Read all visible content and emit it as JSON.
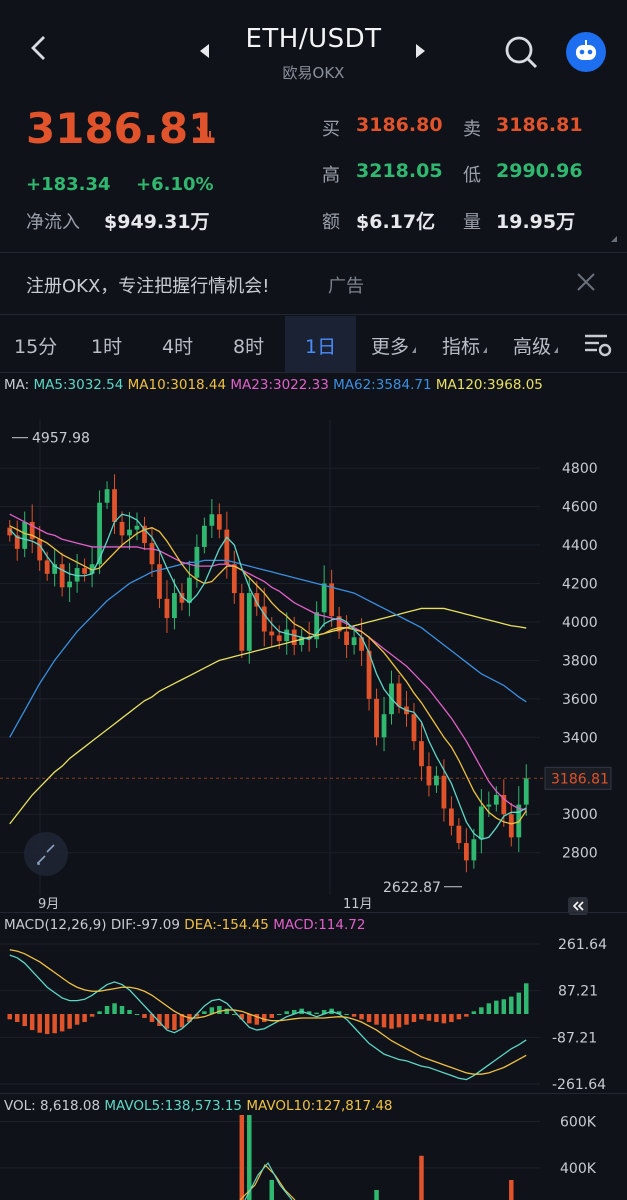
{
  "header": {
    "pair": "ETH/USDT",
    "exchange": "欧易OKX"
  },
  "ticker": {
    "price": "3186.81",
    "change": "+183.34",
    "change_pct": "+6.10%",
    "inflow_label": "净流入",
    "inflow_value": "$949.31万",
    "buy_label": "买",
    "buy_value": "3186.80",
    "sell_label": "卖",
    "sell_value": "3186.81",
    "high_label": "高",
    "high_value": "3218.05",
    "low_label": "低",
    "low_value": "2990.96",
    "amount_label": "额",
    "amount_value": "$6.17亿",
    "volume_label": "量",
    "volume_value": "19.95万"
  },
  "ad": {
    "text": "注册OKX，专注把握行情机会!",
    "tag": "广告"
  },
  "tabs": [
    {
      "label": "15分"
    },
    {
      "label": "1时"
    },
    {
      "label": "4时"
    },
    {
      "label": "8时"
    },
    {
      "label": "1日",
      "active": true
    },
    {
      "label": "更多"
    },
    {
      "label": "指标"
    },
    {
      "label": "高级"
    }
  ],
  "ma_legend": {
    "ma": "MA:",
    "ma5": "MA5:3032.54",
    "ma10": "MA10:3018.44",
    "ma23": "MA23:3022.33",
    "ma62": "MA62:3584.71",
    "ma120": "MA120:3968.05"
  },
  "colors": {
    "up": "#30b870",
    "down": "#e0532b",
    "ma5": "#5ed6c6",
    "ma10": "#f0c040",
    "ma23": "#e060c8",
    "ma62": "#3b8fe0",
    "ma120": "#e8e060",
    "accent": "#4a8dff"
  },
  "chart_data": [
    {
      "type": "candlestick",
      "x_labels": [
        "9月",
        "11月"
      ],
      "y_ticks": [
        4800,
        4600,
        4400,
        4200,
        4000,
        3800,
        3600,
        3400,
        3000,
        2800
      ],
      "ylim": [
        2580,
        5050
      ],
      "current_price_label": "3186.81",
      "max_label": "4957.98",
      "min_label": "2622.87",
      "close": [
        4450,
        4380,
        4520,
        4430,
        4320,
        4250,
        4300,
        4180,
        4210,
        4280,
        4250,
        4300,
        4620,
        4690,
        4520,
        4450,
        4480,
        4500,
        4410,
        4300,
        4120,
        4020,
        4150,
        4100,
        4230,
        4390,
        4500,
        4560,
        4480,
        4300,
        4150,
        3850,
        4150,
        4080,
        3950,
        3930,
        3900,
        3960,
        3880,
        3920,
        3910,
        4050,
        4200,
        4030,
        3950,
        3880,
        3920,
        3850,
        3600,
        3400,
        3520,
        3680,
        3560,
        3520,
        3380,
        3250,
        3150,
        3200,
        3030,
        2940,
        2850,
        2760,
        2870,
        3040,
        3050,
        3100,
        3000,
        2880,
        3050,
        3186.81
      ],
      "ma5": [
        4480,
        4440,
        4430,
        4420,
        4400,
        4340,
        4290,
        4270,
        4250,
        4240,
        4240,
        4250,
        4330,
        4420,
        4520,
        4560,
        4550,
        4530,
        4480,
        4440,
        4370,
        4280,
        4200,
        4130,
        4100,
        4140,
        4200,
        4290,
        4380,
        4440,
        4400,
        4280,
        4180,
        4100,
        4040,
        3990,
        3950,
        3940,
        3930,
        3920,
        3910,
        3940,
        3990,
        4010,
        4020,
        4000,
        3960,
        3920,
        3840,
        3730,
        3650,
        3600,
        3560,
        3540,
        3530,
        3480,
        3380,
        3300,
        3230,
        3160,
        3060,
        2960,
        2900,
        2870,
        2880,
        2930,
        2990,
        3010,
        3010,
        3032.54
      ],
      "ma10": [
        4500,
        4480,
        4460,
        4450,
        4430,
        4410,
        4380,
        4350,
        4330,
        4310,
        4290,
        4270,
        4280,
        4320,
        4360,
        4400,
        4430,
        4460,
        4480,
        4490,
        4470,
        4420,
        4360,
        4300,
        4250,
        4220,
        4200,
        4210,
        4250,
        4290,
        4290,
        4270,
        4230,
        4190,
        4150,
        4100,
        4060,
        4030,
        3990,
        3970,
        3940,
        3930,
        3940,
        3960,
        3970,
        3970,
        3960,
        3950,
        3920,
        3880,
        3840,
        3790,
        3740,
        3690,
        3630,
        3580,
        3520,
        3460,
        3400,
        3350,
        3280,
        3200,
        3120,
        3060,
        3010,
        2980,
        2960,
        2950,
        2960,
        3018.44
      ],
      "ma23": [
        4560,
        4540,
        4520,
        4500,
        4480,
        4460,
        4450,
        4430,
        4420,
        4410,
        4400,
        4390,
        4390,
        4390,
        4390,
        4390,
        4390,
        4390,
        4380,
        4380,
        4370,
        4350,
        4330,
        4310,
        4300,
        4290,
        4290,
        4290,
        4300,
        4300,
        4290,
        4270,
        4250,
        4230,
        4210,
        4180,
        4160,
        4130,
        4100,
        4080,
        4060,
        4040,
        4030,
        4020,
        4010,
        3990,
        3970,
        3950,
        3920,
        3890,
        3860,
        3830,
        3800,
        3770,
        3730,
        3690,
        3650,
        3600,
        3550,
        3500,
        3440,
        3380,
        3310,
        3240,
        3170,
        3120,
        3080,
        3050,
        3030,
        3022.33
      ],
      "ma62": [
        3400,
        3470,
        3540,
        3610,
        3680,
        3740,
        3800,
        3850,
        3900,
        3950,
        3990,
        4030,
        4070,
        4110,
        4140,
        4170,
        4200,
        4220,
        4240,
        4260,
        4270,
        4280,
        4290,
        4300,
        4310,
        4310,
        4320,
        4320,
        4320,
        4320,
        4310,
        4300,
        4290,
        4280,
        4270,
        4260,
        4250,
        4240,
        4230,
        4220,
        4210,
        4200,
        4190,
        4180,
        4170,
        4160,
        4150,
        4130,
        4110,
        4090,
        4070,
        4050,
        4030,
        4010,
        3990,
        3970,
        3940,
        3910,
        3880,
        3850,
        3820,
        3790,
        3760,
        3730,
        3710,
        3690,
        3670,
        3640,
        3610,
        3584.71
      ],
      "ma120": [
        2950,
        3000,
        3050,
        3100,
        3140,
        3180,
        3220,
        3250,
        3290,
        3320,
        3350,
        3380,
        3410,
        3440,
        3470,
        3500,
        3530,
        3560,
        3590,
        3610,
        3640,
        3660,
        3680,
        3700,
        3720,
        3740,
        3760,
        3780,
        3800,
        3810,
        3820,
        3830,
        3840,
        3850,
        3860,
        3870,
        3880,
        3890,
        3900,
        3910,
        3920,
        3930,
        3940,
        3950,
        3960,
        3970,
        3980,
        3990,
        4000,
        4010,
        4020,
        4030,
        4040,
        4050,
        4060,
        4070,
        4070,
        4070,
        4070,
        4060,
        4050,
        4040,
        4030,
        4020,
        4010,
        4000,
        3990,
        3980,
        3975,
        3968.05
      ]
    },
    {
      "type": "bar",
      "title": "MACD(12,26,9)",
      "dif_label": "DIF:-97.09",
      "dea_label": "DEA:-154.45",
      "macd_label": "MACD:114.72",
      "y_ticks": [
        "261.64",
        "87.21",
        "-87.21",
        "-261.64"
      ],
      "ylim": [
        -261.64,
        261.64
      ],
      "macd": [
        -20,
        -30,
        -45,
        -60,
        -70,
        -75,
        -72,
        -65,
        -55,
        -40,
        -30,
        -10,
        10,
        30,
        40,
        30,
        15,
        0,
        -15,
        -30,
        -45,
        -55,
        -60,
        -50,
        -30,
        -10,
        10,
        25,
        30,
        20,
        0,
        -20,
        -35,
        -40,
        -30,
        -15,
        0,
        10,
        15,
        20,
        10,
        5,
        15,
        20,
        10,
        0,
        -10,
        -20,
        -30,
        -40,
        -50,
        -55,
        -50,
        -40,
        -30,
        -20,
        -25,
        -30,
        -35,
        -30,
        -20,
        -10,
        10,
        25,
        40,
        50,
        55,
        65,
        80,
        114.72
      ],
      "dif": [
        220,
        210,
        190,
        160,
        130,
        100,
        80,
        60,
        50,
        50,
        55,
        70,
        90,
        110,
        120,
        110,
        90,
        60,
        30,
        0,
        -30,
        -60,
        -70,
        -55,
        -30,
        0,
        30,
        50,
        55,
        40,
        10,
        -20,
        -50,
        -60,
        -55,
        -40,
        -25,
        -10,
        0,
        10,
        0,
        -10,
        0,
        10,
        0,
        -20,
        -50,
        -80,
        -110,
        -130,
        -150,
        -160,
        -170,
        -175,
        -185,
        -195,
        -200,
        -210,
        -220,
        -230,
        -240,
        -245,
        -230,
        -210,
        -190,
        -170,
        -150,
        -130,
        -115,
        -97.09
      ],
      "dea": [
        240,
        235,
        225,
        210,
        195,
        175,
        155,
        135,
        115,
        100,
        90,
        85,
        85,
        90,
        95,
        100,
        100,
        95,
        85,
        70,
        50,
        30,
        10,
        -5,
        -15,
        -15,
        -10,
        0,
        10,
        15,
        15,
        10,
        0,
        -10,
        -20,
        -25,
        -25,
        -22,
        -18,
        -15,
        -15,
        -15,
        -15,
        -12,
        -10,
        -12,
        -20,
        -30,
        -45,
        -60,
        -80,
        -100,
        -115,
        -130,
        -145,
        -160,
        -170,
        -180,
        -190,
        -200,
        -210,
        -220,
        -225,
        -225,
        -220,
        -210,
        -200,
        -185,
        -170,
        -154.45
      ]
    },
    {
      "type": "bar",
      "title": "VOL: 8,618.08",
      "mavol5_label": "MAVOL5:138,573.15",
      "mavol10_label": "MAVOL10:127,817.48",
      "y_ticks": [
        "600K",
        "400K"
      ],
      "volume_up_spikes": [
        {
          "index": 31,
          "value": 700000
        },
        {
          "index": 34,
          "value": 350000
        },
        {
          "index": 48,
          "value": 300000
        }
      ],
      "volume_down_spikes": [
        {
          "index": 31,
          "value": 700000
        },
        {
          "index": 55,
          "value": 420000
        },
        {
          "index": 67,
          "value": 300000
        }
      ]
    }
  ]
}
